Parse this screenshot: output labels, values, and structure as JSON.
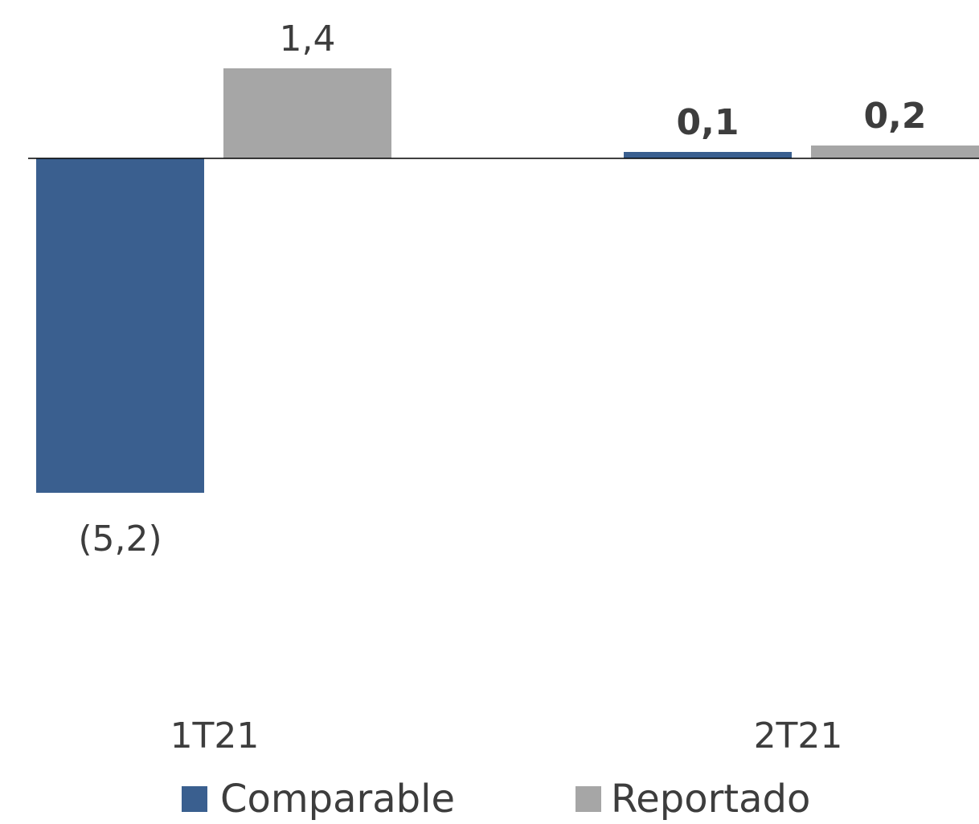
{
  "chart_data": {
    "type": "bar",
    "categories": [
      "1T21",
      "2T21"
    ],
    "series": [
      {
        "name": "Comparable",
        "color": "#3A5F8F",
        "values": [
          -5.2,
          0.1
        ],
        "labels": [
          "(5,2)",
          "0,1"
        ],
        "label_bold": [
          false,
          true
        ]
      },
      {
        "name": "Reportado",
        "color": "#A6A6A6",
        "values": [
          1.4,
          0.2
        ],
        "labels": [
          "1,4",
          "0,2"
        ],
        "label_bold": [
          false,
          true
        ]
      }
    ],
    "ylim": [
      -5.2,
      1.4
    ],
    "grid": false,
    "legend": "bottom",
    "title": "",
    "xlabel": "",
    "ylabel": ""
  },
  "legend": {
    "comparable_label": "Comparable",
    "reportado_label": "Reportado"
  }
}
